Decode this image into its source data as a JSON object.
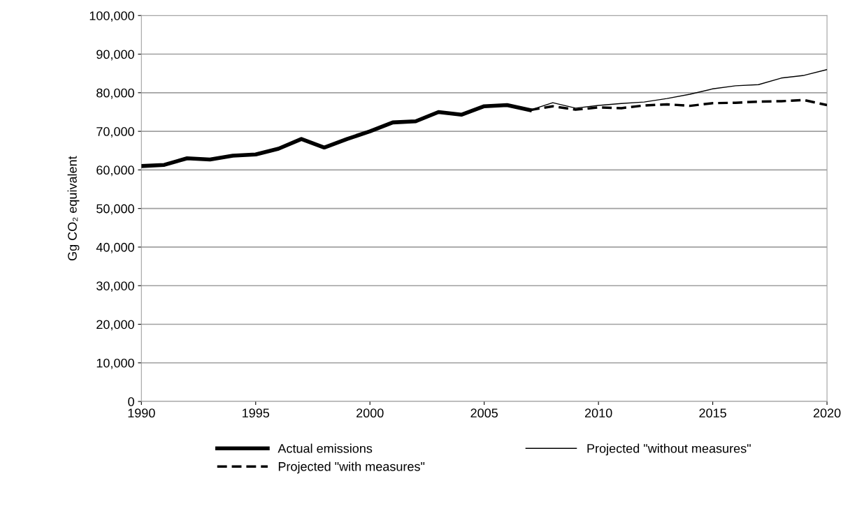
{
  "chart_data": {
    "type": "line",
    "ylabel": "Gg CO₂ equivalent",
    "xlim": [
      1990,
      2020
    ],
    "xticks": [
      1990,
      1995,
      2000,
      2005,
      2010,
      2015,
      2020
    ],
    "ylim": [
      0,
      100000
    ],
    "yticks": [
      {
        "value": 0,
        "label": "0"
      },
      {
        "value": 10000,
        "label": "10,000"
      },
      {
        "value": 20000,
        "label": "20,000"
      },
      {
        "value": 30000,
        "label": "30,000"
      },
      {
        "value": 40000,
        "label": "40,000"
      },
      {
        "value": 50000,
        "label": "50,000"
      },
      {
        "value": 60000,
        "label": "60,000"
      },
      {
        "value": 70000,
        "label": "70,000"
      },
      {
        "value": 80000,
        "label": "80,000"
      },
      {
        "value": 90000,
        "label": "90,000"
      },
      {
        "value": 100000,
        "label": "100,000"
      }
    ],
    "grid": "y",
    "legend": "bottom",
    "marker": "none",
    "series": [
      {
        "name": "Actual emissions",
        "color": "#000000",
        "line_style": "solid",
        "x": [
          1990,
          1991,
          1992,
          1993,
          1994,
          1995,
          1996,
          1997,
          1998,
          1999,
          2000,
          2001,
          2002,
          2003,
          2004,
          2005,
          2006,
          2007
        ],
        "values": [
          61000,
          61300,
          63000,
          62700,
          63700,
          64000,
          65500,
          68000,
          65800,
          68000,
          70000,
          72300,
          72600,
          75000,
          74300,
          76500,
          76800,
          75500
        ]
      },
      {
        "name": "Projected \"with measures\"",
        "color": "#000000",
        "line_style": "dashed",
        "x": [
          2007,
          2008,
          2009,
          2010,
          2011,
          2012,
          2013,
          2014,
          2015,
          2016,
          2017,
          2018,
          2019,
          2020
        ],
        "values": [
          75500,
          76500,
          75600,
          76200,
          76000,
          76700,
          77000,
          76600,
          77300,
          77400,
          77700,
          77800,
          78100,
          76800
        ]
      },
      {
        "name": "Projected \"without measures\"",
        "color": "#000000",
        "line_style": "solid",
        "x": [
          2007,
          2008,
          2009,
          2010,
          2011,
          2012,
          2013,
          2014,
          2015,
          2016,
          2017,
          2018,
          2019,
          2020
        ],
        "values": [
          75500,
          77400,
          76000,
          76700,
          77200,
          77600,
          78500,
          79600,
          81000,
          81800,
          82100,
          83800,
          84500,
          86000
        ]
      }
    ]
  }
}
